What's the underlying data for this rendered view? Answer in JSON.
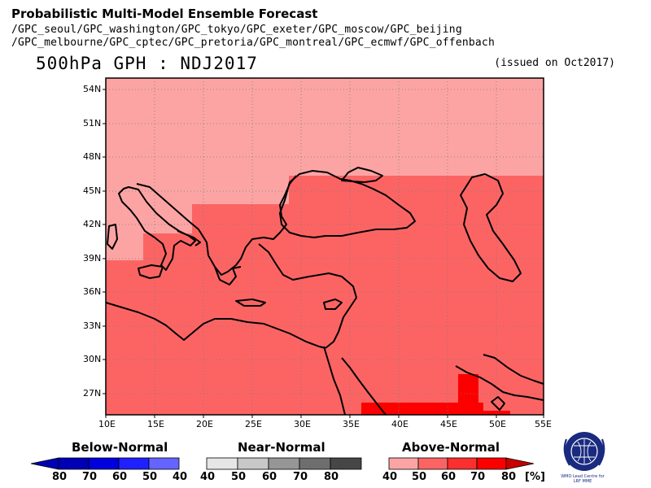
{
  "header": {
    "title": "Probabilistic Multi-Model Ensemble Forecast",
    "models_line1": "/GPC_seoul/GPC_washington/GPC_tokyo/GPC_exeter/GPC_moscow/GPC_beijing",
    "models_line2": "/GPC_melbourne/GPC_cptec/GPC_pretoria/GPC_montreal/GPC_ecmwf/GPC_offenbach",
    "forecast_title": "500hPa GPH : NDJ2017",
    "issued": "(issued on Oct2017)"
  },
  "map": {
    "lat_ticks": [
      "54N",
      "51N",
      "48N",
      "45N",
      "42N",
      "39N",
      "36N",
      "33N",
      "30N",
      "27N"
    ],
    "lon_ticks": [
      "10E",
      "15E",
      "20E",
      "25E",
      "30E",
      "35E",
      "40E",
      "45E",
      "50E",
      "55E"
    ],
    "colors": {
      "above_40": "#fca4a4",
      "above_50": "#fc6464",
      "above_60": "#fc2e2e",
      "above_70": "#fc0000",
      "coast": "#000000",
      "grid": "#7a7a7a"
    }
  },
  "legend": {
    "below": {
      "title": "Below-Normal",
      "labels": [
        "80",
        "70",
        "60",
        "50",
        "40"
      ],
      "colors": [
        "#0000b4",
        "#0000dc",
        "#2020ff",
        "#6464ff",
        "#a0a0ff"
      ]
    },
    "near": {
      "title": "Near-Normal",
      "labels": [
        "40",
        "50",
        "60",
        "70",
        "80"
      ],
      "colors": [
        "#e6e6e6",
        "#c8c8c8",
        "#969696",
        "#6e6e6e",
        "#464646"
      ]
    },
    "above": {
      "title": "Above-Normal",
      "labels": [
        "40",
        "50",
        "60",
        "70",
        "80"
      ],
      "unit": "[%]",
      "colors": [
        "#fca4a4",
        "#fc6464",
        "#fc2e2e",
        "#fc0000",
        "#c80000"
      ]
    }
  },
  "logo": {
    "line1": "WMO Lead Centre for",
    "line2": "LRF MME"
  }
}
